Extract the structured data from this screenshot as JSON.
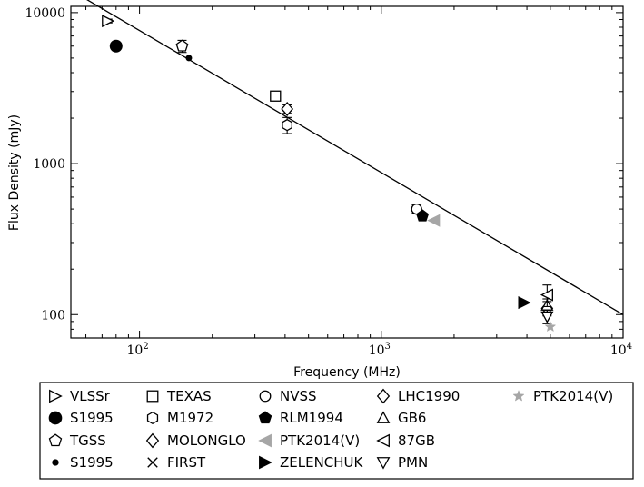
{
  "chart_data": {
    "type": "scatter",
    "xlabel": "Frequency (MHz)",
    "ylabel": "Flux Density (mJy)",
    "x_scale": "log",
    "y_scale": "log",
    "xlim": [
      52,
      10000
    ],
    "ylim": [
      70,
      11000
    ],
    "x_tick_labels": [
      "10^2",
      "10^3",
      "10^4"
    ],
    "y_tick_labels": [
      "100",
      "1000",
      "10000"
    ],
    "grid": false,
    "legend_position": "bottom",
    "fit_line": {
      "x": [
        60,
        10000
      ],
      "y": [
        12300,
        100
      ]
    },
    "series": [
      {
        "name": "VLSSr",
        "marker": "triangle-right-open",
        "color": "#000000",
        "points": [
          {
            "x": 74,
            "y": 8800,
            "yerr": 250
          }
        ]
      },
      {
        "name": "S1995",
        "marker": "circle-filled-large",
        "color": "#000000",
        "points": [
          {
            "x": 80,
            "y": 6000
          }
        ]
      },
      {
        "name": "TGSS",
        "marker": "pentagon-open",
        "color": "#000000",
        "points": [
          {
            "x": 150,
            "y": 6000,
            "yerr": 550
          }
        ]
      },
      {
        "name": "S1995",
        "marker": "circle-filled-small",
        "color": "#000000",
        "points": [
          {
            "x": 160,
            "y": 5000
          }
        ]
      },
      {
        "name": "TEXAS",
        "marker": "square-open",
        "color": "#000000",
        "points": [
          {
            "x": 365,
            "y": 2800,
            "yerr": 120
          }
        ]
      },
      {
        "name": "M1972",
        "marker": "hexagon-open",
        "color": "#000000",
        "points": [
          {
            "x": 408,
            "y": 1800,
            "yerr": 220
          }
        ]
      },
      {
        "name": "MOLONGLO",
        "marker": "diamond-open",
        "color": "#000000",
        "points": [
          {
            "x": 408,
            "y": 2300,
            "yerr": 150
          }
        ]
      },
      {
        "name": "FIRST",
        "marker": "x",
        "color": "#000000",
        "points": [
          {
            "x": 1400,
            "y": 500
          }
        ]
      },
      {
        "name": "NVSS",
        "marker": "circle-open",
        "color": "#000000",
        "points": [
          {
            "x": 1400,
            "y": 500,
            "yerr": 20
          }
        ]
      },
      {
        "name": "RLM1994",
        "marker": "pentagon-filled",
        "color": "#000000",
        "points": [
          {
            "x": 1480,
            "y": 450
          }
        ]
      },
      {
        "name": "PTK2014(V)",
        "marker": "triangle-left-filled",
        "color": "#a6a6a6",
        "points": [
          {
            "x": 1650,
            "y": 420
          }
        ]
      },
      {
        "name": "ZELENCHUK",
        "marker": "triangle-right-filled",
        "color": "#000000",
        "points": [
          {
            "x": 3900,
            "y": 120
          }
        ]
      },
      {
        "name": "LHC1990",
        "marker": "diamond-open",
        "color": "#000000",
        "points": [
          {
            "x": 4850,
            "y": 110,
            "yerr": 12
          }
        ]
      },
      {
        "name": "GB6",
        "marker": "triangle-up-open",
        "color": "#000000",
        "points": [
          {
            "x": 4850,
            "y": 115,
            "yerr": 12
          }
        ]
      },
      {
        "name": "87GB",
        "marker": "triangle-left-open",
        "color": "#000000",
        "points": [
          {
            "x": 4850,
            "y": 135,
            "yerr": 22
          }
        ]
      },
      {
        "name": "PMN",
        "marker": "triangle-down-open",
        "color": "#000000",
        "points": [
          {
            "x": 4850,
            "y": 97,
            "yerr": 10
          }
        ]
      },
      {
        "name": "PTK2014(V)",
        "marker": "star-filled",
        "color": "#a6a6a6",
        "points": [
          {
            "x": 5000,
            "y": 83
          }
        ]
      }
    ]
  }
}
